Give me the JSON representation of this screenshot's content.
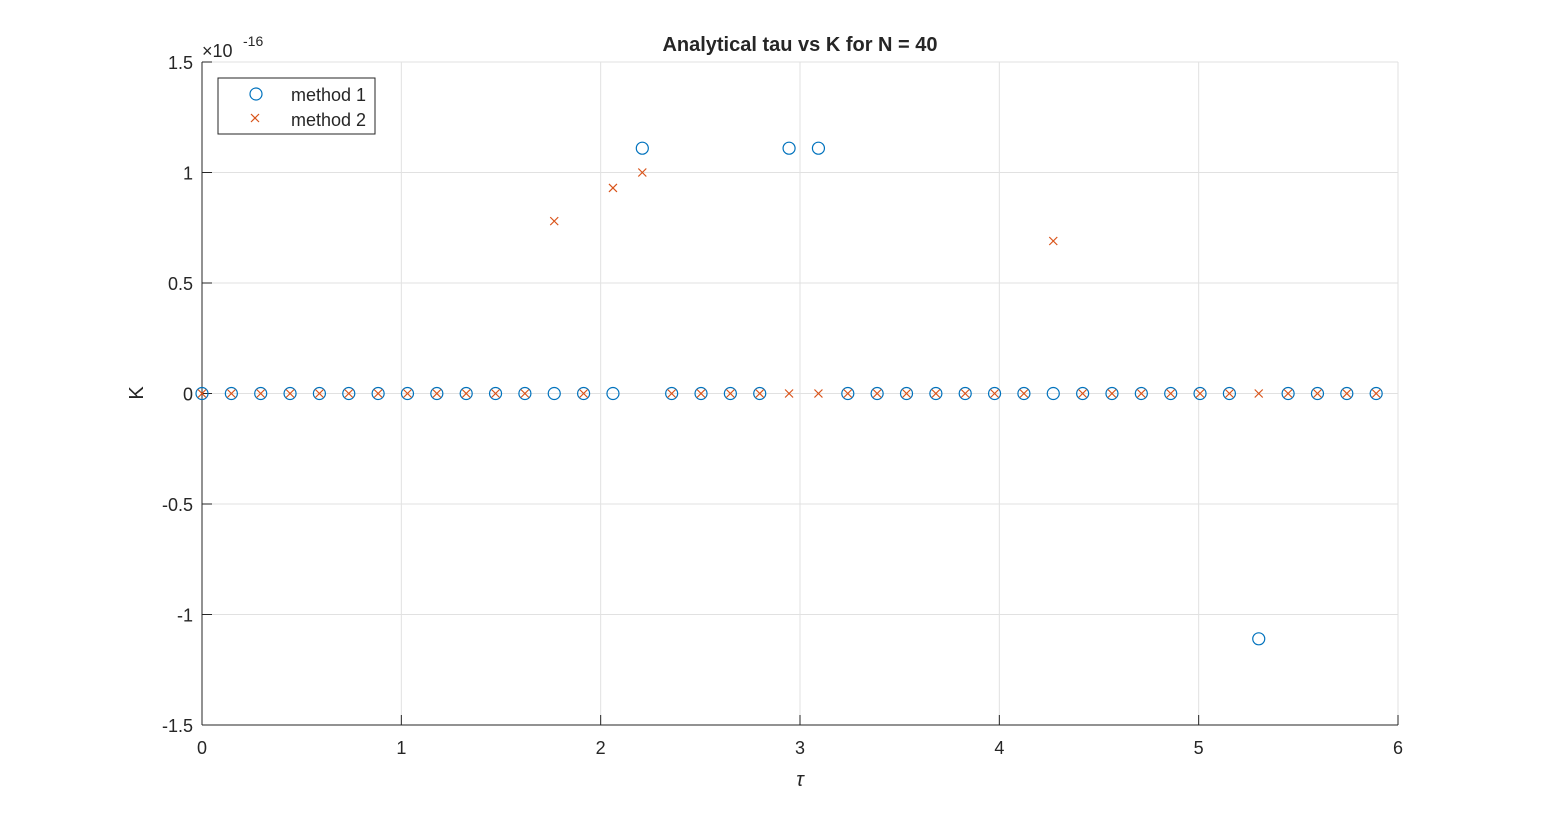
{
  "colors": {
    "method_1": "#0072bd",
    "method_2": "#d95319",
    "axis": "#262626",
    "grid": "#e1e1e1"
  },
  "chart_data": {
    "type": "scatter",
    "title": "Analytical tau vs K for N = 40",
    "xlabel": "τ",
    "ylabel": "K",
    "xlim": [
      0,
      6
    ],
    "ylim": [
      -1.5e-16,
      1.5e-16
    ],
    "y_exponent_label": "×10",
    "y_exponent_power": "-16",
    "x_ticks": [
      0,
      1,
      2,
      3,
      4,
      5,
      6
    ],
    "x_tick_labels": [
      "0",
      "1",
      "2",
      "3",
      "4",
      "5",
      "6"
    ],
    "y_ticks": [
      -1.5,
      -1,
      -0.5,
      0,
      0.5,
      1,
      1.5
    ],
    "y_tick_labels": [
      "-1.5",
      "-1",
      "-0.5",
      "0",
      "0.5",
      "1",
      "1.5"
    ],
    "y_tick_scale": 1e-16,
    "grid": true,
    "legend_position": "top-left",
    "x": [
      0,
      0.1473,
      0.2945,
      0.4418,
      0.589,
      0.7363,
      0.8836,
      1.0308,
      1.1781,
      1.3254,
      1.4726,
      1.6199,
      1.7671,
      1.9144,
      2.0617,
      2.2089,
      2.3562,
      2.5035,
      2.6507,
      2.798,
      2.9452,
      3.0925,
      3.2398,
      3.387,
      3.5343,
      3.6816,
      3.8288,
      3.9761,
      4.1233,
      4.2706,
      4.4179,
      4.5651,
      4.7124,
      4.8597,
      5.0069,
      5.1542,
      5.3014,
      5.4487,
      5.596,
      5.7432,
      5.8905
    ],
    "series": [
      {
        "name": "method 1",
        "marker": "o",
        "values": [
          0,
          0,
          0,
          0,
          0,
          0,
          0,
          0,
          0,
          0,
          0,
          0,
          0,
          0,
          0,
          1.11e-16,
          0,
          0,
          0,
          0,
          1.11e-16,
          1.11e-16,
          0,
          0,
          0,
          0,
          0,
          0,
          0,
          0,
          0,
          0,
          0,
          0,
          0,
          0,
          -1.11e-16,
          0,
          0,
          0,
          0
        ]
      },
      {
        "name": "method 2",
        "marker": "x",
        "values": [
          0,
          0,
          0,
          0,
          0,
          0,
          0,
          0,
          0,
          0,
          0,
          0,
          7.8e-17,
          0,
          9.3e-17,
          1e-16,
          0,
          0,
          0,
          0,
          0,
          0,
          0,
          0,
          0,
          0,
          0,
          0,
          0,
          6.9e-17,
          0,
          0,
          0,
          0,
          0,
          0,
          0,
          0,
          0,
          0,
          0
        ]
      }
    ]
  }
}
